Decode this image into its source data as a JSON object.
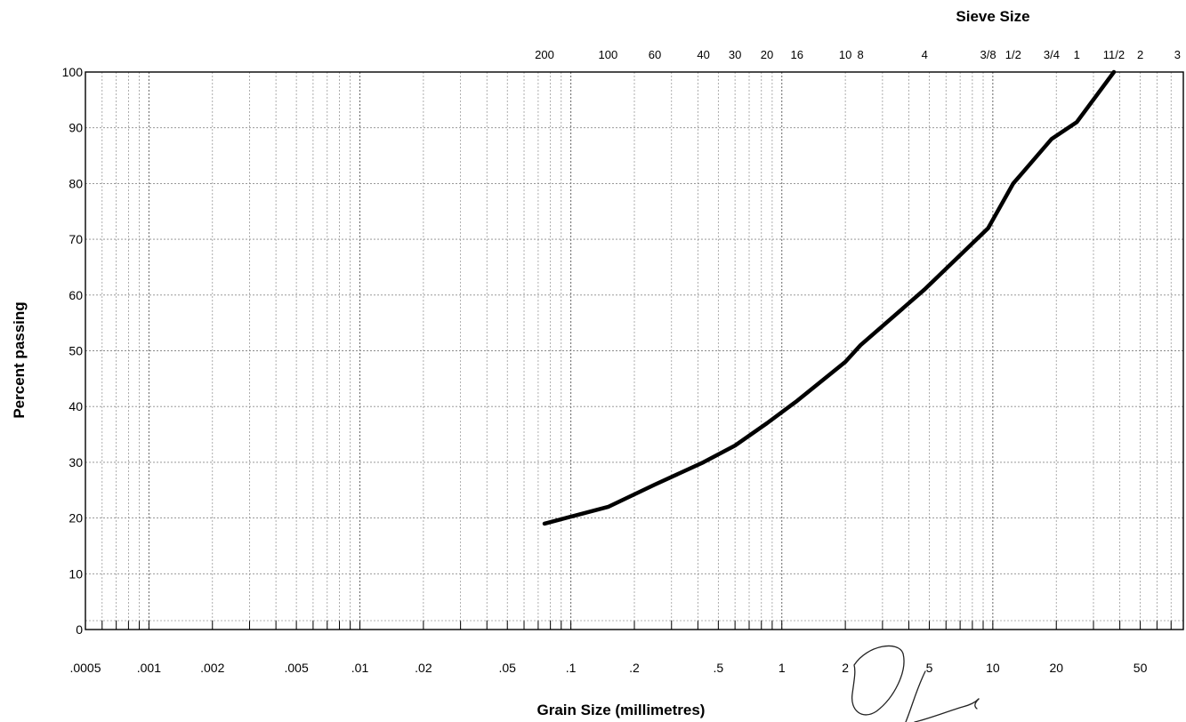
{
  "chart_data": {
    "type": "line",
    "title": "Sieve Size",
    "xlabel": "Grain Size (millimetres)",
    "ylabel": "Percent passing",
    "x_scale": "log",
    "xlim": [
      0.0005,
      80
    ],
    "ylim": [
      0,
      100
    ],
    "grid": true,
    "y_ticks": [
      {
        "value": 0,
        "label": "0"
      },
      {
        "value": 10,
        "label": "10"
      },
      {
        "value": 20,
        "label": "20"
      },
      {
        "value": 30,
        "label": "30"
      },
      {
        "value": 40,
        "label": "40"
      },
      {
        "value": 50,
        "label": "50"
      },
      {
        "value": 60,
        "label": "60"
      },
      {
        "value": 70,
        "label": "70"
      },
      {
        "value": 80,
        "label": "80"
      },
      {
        "value": 90,
        "label": "90"
      },
      {
        "value": 100,
        "label": "100"
      }
    ],
    "x_ticks": [
      {
        "value": 0.0005,
        "label": ".0005"
      },
      {
        "value": 0.001,
        "label": ".001"
      },
      {
        "value": 0.002,
        "label": ".002"
      },
      {
        "value": 0.005,
        "label": ".005"
      },
      {
        "value": 0.01,
        "label": ".01"
      },
      {
        "value": 0.02,
        "label": ".02"
      },
      {
        "value": 0.05,
        "label": ".05"
      },
      {
        "value": 0.1,
        "label": ".1"
      },
      {
        "value": 0.2,
        "label": ".2"
      },
      {
        "value": 0.5,
        "label": ".5"
      },
      {
        "value": 1,
        "label": "1"
      },
      {
        "value": 2,
        "label": "2"
      },
      {
        "value": 5,
        "label": "5"
      },
      {
        "value": 10,
        "label": "10"
      },
      {
        "value": 20,
        "label": "20"
      },
      {
        "value": 50,
        "label": "50"
      }
    ],
    "sieve_ticks": [
      {
        "value": 0.075,
        "label": "200"
      },
      {
        "value": 0.15,
        "label": "100"
      },
      {
        "value": 0.25,
        "label": "60"
      },
      {
        "value": 0.425,
        "label": "40"
      },
      {
        "value": 0.6,
        "label": "30"
      },
      {
        "value": 0.85,
        "label": "20"
      },
      {
        "value": 1.18,
        "label": "16"
      },
      {
        "value": 2.0,
        "label": "10"
      },
      {
        "value": 2.36,
        "label": "8"
      },
      {
        "value": 4.75,
        "label": "4"
      },
      {
        "value": 9.5,
        "label": "3/8"
      },
      {
        "value": 12.5,
        "label": "1/2"
      },
      {
        "value": 19,
        "label": "3/4"
      },
      {
        "value": 25,
        "label": "1"
      },
      {
        "value": 37.5,
        "label": "11/2"
      },
      {
        "value": 50,
        "label": "2"
      },
      {
        "value": 75,
        "label": "3"
      }
    ],
    "series": [
      {
        "x": [
          0.075,
          0.15,
          0.25,
          0.425,
          0.6,
          0.85,
          1.18,
          2.0,
          2.36,
          4.75,
          9.5,
          12.5,
          19,
          25,
          37.5
        ],
        "y": [
          19,
          22,
          26,
          30,
          33,
          37,
          41,
          48,
          51,
          61,
          72,
          80,
          88,
          91,
          100
        ]
      }
    ]
  }
}
